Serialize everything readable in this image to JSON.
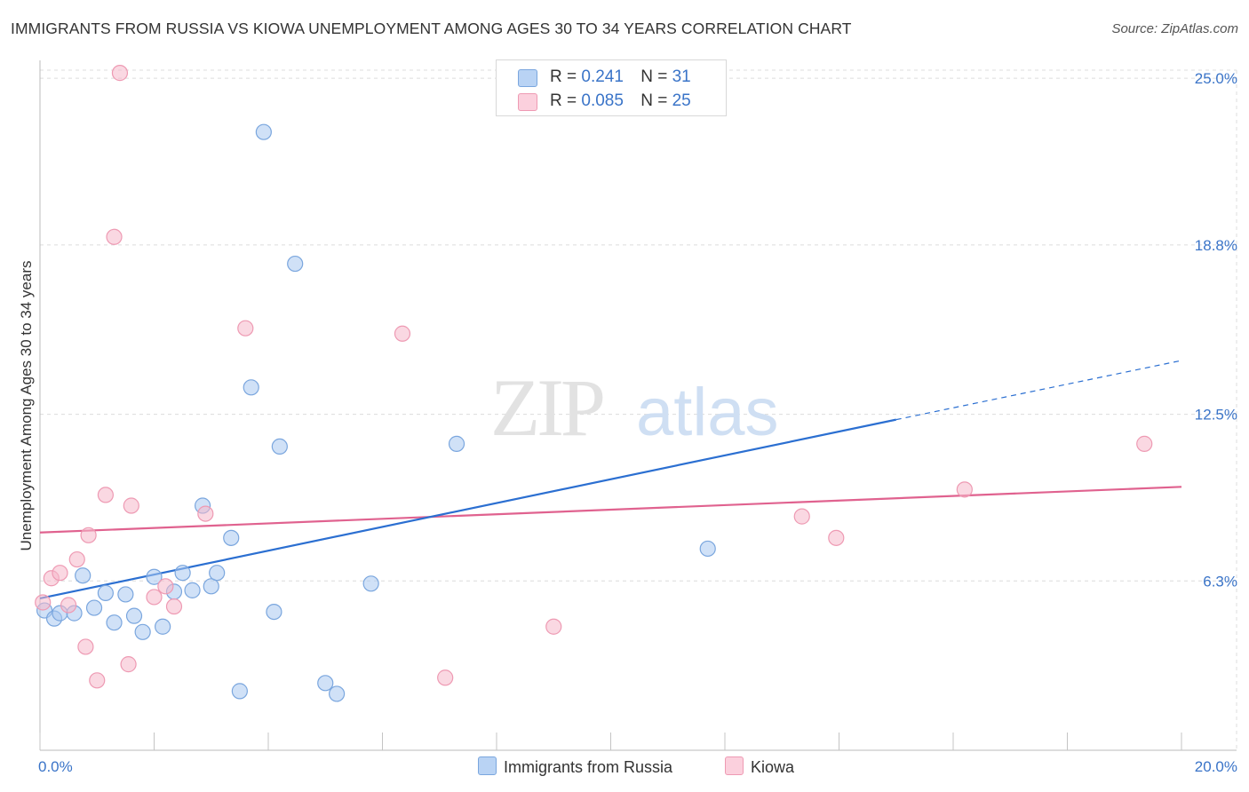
{
  "title": "IMMIGRANTS FROM RUSSIA VS KIOWA UNEMPLOYMENT AMONG AGES 30 TO 34 YEARS CORRELATION CHART",
  "source": "Source: ZipAtlas.com",
  "watermark": {
    "zip": "ZIP",
    "atlas": "atlas"
  },
  "colors": {
    "blue_fill": "#a9c8f0",
    "blue_stroke": "#7aa6de",
    "blue_line": "#2b6fd1",
    "pink_fill": "#f6b8cb",
    "pink_stroke": "#ee9ab3",
    "pink_line": "#e0628f",
    "tick_label": "#3a74c8",
    "grid": "#dcdcdc"
  },
  "legend": {
    "rows": [
      {
        "r_label": "R = ",
        "r_value": "0.241",
        "n_label": "N = ",
        "n_value": "31"
      },
      {
        "r_label": "R = ",
        "r_value": "0.085",
        "n_label": "N = ",
        "n_value": "25"
      }
    ]
  },
  "bottom_legend": [
    "Immigrants from Russia",
    "Kiowa"
  ],
  "chart_data": {
    "type": "scatter",
    "title": "IMMIGRANTS FROM RUSSIA VS KIOWA UNEMPLOYMENT AMONG AGES 30 TO 34 YEARS CORRELATION CHART",
    "xlabel": "",
    "ylabel": "Unemployment Among Ages 30 to 34 years",
    "xlim": [
      0,
      20
    ],
    "ylim": [
      0,
      25.6
    ],
    "x_tick_labels": [
      {
        "value": 0,
        "label": "0.0%"
      },
      {
        "value": 20,
        "label": "20.0%"
      }
    ],
    "y_tick_labels": [
      {
        "value": 6.3,
        "label": "6.3%"
      },
      {
        "value": 12.5,
        "label": "12.5%"
      },
      {
        "value": 18.8,
        "label": "18.8%"
      },
      {
        "value": 25.0,
        "label": "25.0%"
      }
    ],
    "series": [
      {
        "name": "Immigrants from Russia",
        "r": 0.241,
        "n": 31,
        "trend": {
          "x0": 0,
          "y0": 5.65,
          "x1": 15.0,
          "y1": 12.3,
          "dash_to_x": 20,
          "dash_to_y": 14.5
        },
        "points": [
          {
            "x": 0.08,
            "y": 5.2
          },
          {
            "x": 0.25,
            "y": 4.9
          },
          {
            "x": 0.35,
            "y": 5.1
          },
          {
            "x": 0.6,
            "y": 5.1
          },
          {
            "x": 0.75,
            "y": 6.5
          },
          {
            "x": 0.95,
            "y": 5.3
          },
          {
            "x": 1.15,
            "y": 5.85
          },
          {
            "x": 1.3,
            "y": 4.75
          },
          {
            "x": 1.5,
            "y": 5.8
          },
          {
            "x": 1.65,
            "y": 5.0
          },
          {
            "x": 1.8,
            "y": 4.4
          },
          {
            "x": 2.0,
            "y": 6.45
          },
          {
            "x": 2.15,
            "y": 4.6
          },
          {
            "x": 2.35,
            "y": 5.9
          },
          {
            "x": 2.5,
            "y": 6.6
          },
          {
            "x": 2.67,
            "y": 5.95
          },
          {
            "x": 2.85,
            "y": 9.1
          },
          {
            "x": 3.0,
            "y": 6.1
          },
          {
            "x": 3.1,
            "y": 6.6
          },
          {
            "x": 3.35,
            "y": 7.9
          },
          {
            "x": 3.5,
            "y": 2.2
          },
          {
            "x": 3.7,
            "y": 13.5
          },
          {
            "x": 3.92,
            "y": 23.0
          },
          {
            "x": 4.1,
            "y": 5.15
          },
          {
            "x": 4.2,
            "y": 11.3
          },
          {
            "x": 4.47,
            "y": 18.1
          },
          {
            "x": 5.0,
            "y": 2.5
          },
          {
            "x": 5.2,
            "y": 2.1
          },
          {
            "x": 5.8,
            "y": 6.2
          },
          {
            "x": 7.3,
            "y": 11.4
          },
          {
            "x": 11.7,
            "y": 7.5
          }
        ]
      },
      {
        "name": "Kiowa",
        "r": 0.085,
        "n": 25,
        "trend": {
          "x0": 0,
          "y0": 8.1,
          "x1": 20,
          "y1": 9.8
        },
        "points": [
          {
            "x": 0.05,
            "y": 5.5
          },
          {
            "x": 0.2,
            "y": 6.4
          },
          {
            "x": 0.35,
            "y": 6.6
          },
          {
            "x": 0.5,
            "y": 5.4
          },
          {
            "x": 0.65,
            "y": 7.1
          },
          {
            "x": 0.8,
            "y": 3.85
          },
          {
            "x": 0.85,
            "y": 8.0
          },
          {
            "x": 1.0,
            "y": 2.6
          },
          {
            "x": 1.15,
            "y": 9.5
          },
          {
            "x": 1.3,
            "y": 19.1
          },
          {
            "x": 1.4,
            "y": 25.2
          },
          {
            "x": 1.55,
            "y": 3.2
          },
          {
            "x": 1.6,
            "y": 9.1
          },
          {
            "x": 2.0,
            "y": 5.7
          },
          {
            "x": 2.2,
            "y": 6.1
          },
          {
            "x": 2.35,
            "y": 5.35
          },
          {
            "x": 2.9,
            "y": 8.8
          },
          {
            "x": 3.6,
            "y": 15.7
          },
          {
            "x": 6.35,
            "y": 15.5
          },
          {
            "x": 7.1,
            "y": 2.7
          },
          {
            "x": 9.0,
            "y": 4.6
          },
          {
            "x": 13.35,
            "y": 8.7
          },
          {
            "x": 13.95,
            "y": 7.9
          },
          {
            "x": 16.2,
            "y": 9.7
          },
          {
            "x": 19.35,
            "y": 11.4
          }
        ]
      }
    ]
  }
}
